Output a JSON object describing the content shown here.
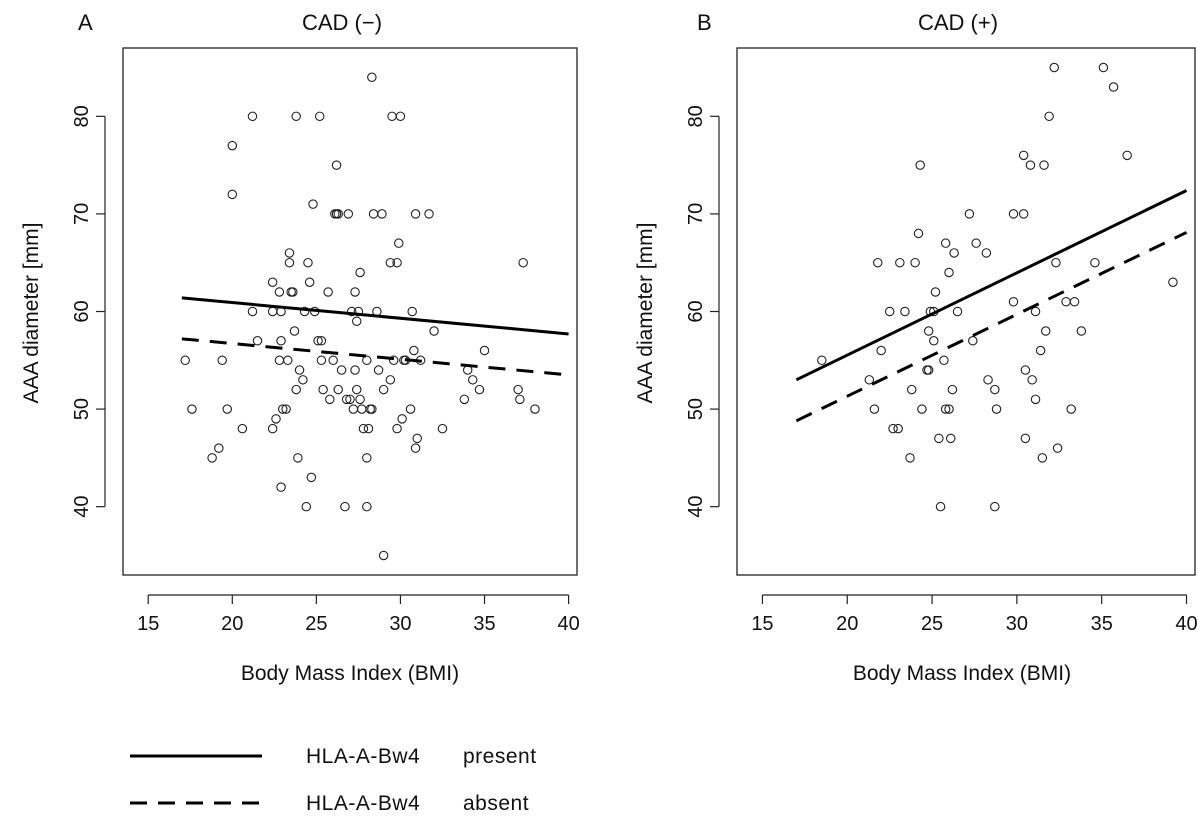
{
  "legend": [
    {
      "line_style": "solid",
      "group": "HLA-A-Bw4",
      "status": "present"
    },
    {
      "line_style": "dashed",
      "group": "HLA-A-Bw4",
      "status": "absent"
    }
  ],
  "chart_data": [
    {
      "type": "scatter",
      "panel_label": "A",
      "title": "CAD (−)",
      "xlabel": "Body Mass Index (BMI)",
      "ylabel": "AAA diameter [mm]",
      "xlim": [
        13.5,
        40.5
      ],
      "ylim": [
        33,
        87
      ],
      "xticks": [
        15,
        20,
        25,
        30,
        35,
        40
      ],
      "yticks": [
        40,
        50,
        60,
        70,
        80
      ],
      "grid": false,
      "points": [
        [
          17.2,
          55
        ],
        [
          17.6,
          50
        ],
        [
          18.8,
          45
        ],
        [
          19.2,
          46
        ],
        [
          19.4,
          55
        ],
        [
          19.7,
          50
        ],
        [
          20.0,
          77
        ],
        [
          20.0,
          72
        ],
        [
          20.6,
          48
        ],
        [
          21.2,
          80
        ],
        [
          21.2,
          60
        ],
        [
          21.5,
          57
        ],
        [
          22.4,
          63
        ],
        [
          22.4,
          60
        ],
        [
          22.4,
          48
        ],
        [
          22.6,
          49
        ],
        [
          22.8,
          62
        ],
        [
          22.8,
          55
        ],
        [
          22.9,
          60
        ],
        [
          22.9,
          57
        ],
        [
          22.9,
          42
        ],
        [
          23.0,
          50
        ],
        [
          23.2,
          50
        ],
        [
          23.3,
          55
        ],
        [
          23.4,
          66
        ],
        [
          23.4,
          65
        ],
        [
          23.5,
          62
        ],
        [
          23.6,
          62
        ],
        [
          23.7,
          58
        ],
        [
          23.8,
          80
        ],
        [
          23.8,
          52
        ],
        [
          23.9,
          45
        ],
        [
          24.0,
          54
        ],
        [
          24.2,
          53
        ],
        [
          24.3,
          60
        ],
        [
          24.4,
          40
        ],
        [
          24.5,
          65
        ],
        [
          24.6,
          63
        ],
        [
          24.7,
          43
        ],
        [
          24.8,
          71
        ],
        [
          24.9,
          60
        ],
        [
          25.1,
          57
        ],
        [
          25.2,
          80
        ],
        [
          25.3,
          57
        ],
        [
          25.3,
          55
        ],
        [
          25.4,
          52
        ],
        [
          25.7,
          62
        ],
        [
          25.8,
          51
        ],
        [
          26.0,
          55
        ],
        [
          26.1,
          70
        ],
        [
          26.2,
          75
        ],
        [
          26.2,
          70
        ],
        [
          26.3,
          70
        ],
        [
          26.3,
          52
        ],
        [
          26.5,
          54
        ],
        [
          26.7,
          40
        ],
        [
          26.8,
          51
        ],
        [
          26.9,
          70
        ],
        [
          27.0,
          51
        ],
        [
          27.1,
          60
        ],
        [
          27.2,
          50
        ],
        [
          27.3,
          62
        ],
        [
          27.3,
          54
        ],
        [
          27.4,
          59
        ],
        [
          27.4,
          52
        ],
        [
          27.5,
          60
        ],
        [
          27.6,
          64
        ],
        [
          27.6,
          51
        ],
        [
          27.7,
          50
        ],
        [
          27.8,
          48
        ],
        [
          28.0,
          45
        ],
        [
          28.0,
          40
        ],
        [
          28.0,
          55
        ],
        [
          28.1,
          48
        ],
        [
          28.2,
          50
        ],
        [
          28.3,
          50
        ],
        [
          28.3,
          84
        ],
        [
          28.4,
          70
        ],
        [
          28.6,
          60
        ],
        [
          28.7,
          54
        ],
        [
          28.9,
          70
        ],
        [
          29.0,
          35
        ],
        [
          29.0,
          52
        ],
        [
          29.4,
          53
        ],
        [
          29.4,
          65
        ],
        [
          29.5,
          80
        ],
        [
          29.6,
          55
        ],
        [
          29.8,
          48
        ],
        [
          29.8,
          65
        ],
        [
          29.9,
          67
        ],
        [
          30.0,
          80
        ],
        [
          30.1,
          49
        ],
        [
          30.2,
          55
        ],
        [
          30.3,
          55
        ],
        [
          30.6,
          50
        ],
        [
          30.7,
          60
        ],
        [
          30.8,
          56
        ],
        [
          30.9,
          46
        ],
        [
          30.9,
          70
        ],
        [
          31.0,
          47
        ],
        [
          31.2,
          55
        ],
        [
          31.7,
          70
        ],
        [
          32.0,
          58
        ],
        [
          32.5,
          48
        ],
        [
          33.8,
          51
        ],
        [
          34.0,
          54
        ],
        [
          34.3,
          53
        ],
        [
          34.7,
          52
        ],
        [
          35.0,
          56
        ],
        [
          37.0,
          52
        ],
        [
          37.1,
          51
        ],
        [
          37.3,
          65
        ],
        [
          38.0,
          50
        ]
      ],
      "regression_lines": [
        {
          "style": "solid",
          "x": [
            17,
            40
          ],
          "y": [
            61.4,
            57.7
          ]
        },
        {
          "style": "dashed",
          "x": [
            17,
            40
          ],
          "y": [
            57.2,
            53.5
          ]
        }
      ]
    },
    {
      "type": "scatter",
      "panel_label": "B",
      "title": "CAD (+)",
      "xlabel": "Body Mass Index (BMI)",
      "ylabel": "AAA diameter [mm]",
      "xlim": [
        13.5,
        40.5
      ],
      "ylim": [
        33,
        87
      ],
      "xticks": [
        15,
        20,
        25,
        30,
        35,
        40
      ],
      "yticks": [
        40,
        50,
        60,
        70,
        80
      ],
      "grid": false,
      "points": [
        [
          18.5,
          55
        ],
        [
          21.3,
          53
        ],
        [
          21.6,
          50
        ],
        [
          21.8,
          65
        ],
        [
          22.0,
          56
        ],
        [
          22.5,
          60
        ],
        [
          22.7,
          48
        ],
        [
          23.0,
          48
        ],
        [
          23.1,
          65
        ],
        [
          23.4,
          60
        ],
        [
          23.7,
          45
        ],
        [
          23.8,
          52
        ],
        [
          24.0,
          65
        ],
        [
          24.2,
          68
        ],
        [
          24.3,
          75
        ],
        [
          24.4,
          50
        ],
        [
          24.7,
          54
        ],
        [
          24.8,
          58
        ],
        [
          24.8,
          54
        ],
        [
          24.9,
          60
        ],
        [
          25.1,
          60
        ],
        [
          25.1,
          57
        ],
        [
          25.2,
          62
        ],
        [
          25.4,
          47
        ],
        [
          25.5,
          40
        ],
        [
          25.7,
          55
        ],
        [
          25.8,
          67
        ],
        [
          25.8,
          50
        ],
        [
          26.0,
          50
        ],
        [
          26.0,
          64
        ],
        [
          26.1,
          47
        ],
        [
          26.2,
          52
        ],
        [
          26.3,
          66
        ],
        [
          26.5,
          60
        ],
        [
          27.2,
          70
        ],
        [
          27.4,
          57
        ],
        [
          27.6,
          67
        ],
        [
          28.2,
          66
        ],
        [
          28.3,
          53
        ],
        [
          28.7,
          52
        ],
        [
          28.7,
          40
        ],
        [
          28.8,
          50
        ],
        [
          29.8,
          61
        ],
        [
          29.8,
          70
        ],
        [
          30.4,
          70
        ],
        [
          30.4,
          76
        ],
        [
          30.5,
          54
        ],
        [
          30.5,
          47
        ],
        [
          30.8,
          75
        ],
        [
          30.9,
          53
        ],
        [
          31.1,
          51
        ],
        [
          31.1,
          60
        ],
        [
          31.4,
          56
        ],
        [
          31.5,
          45
        ],
        [
          31.6,
          75
        ],
        [
          31.7,
          58
        ],
        [
          31.9,
          80
        ],
        [
          32.2,
          85
        ],
        [
          32.3,
          65
        ],
        [
          32.4,
          46
        ],
        [
          32.9,
          61
        ],
        [
          33.2,
          50
        ],
        [
          33.4,
          61
        ],
        [
          33.8,
          58
        ],
        [
          34.6,
          65
        ],
        [
          35.1,
          85
        ],
        [
          35.7,
          83
        ],
        [
          36.5,
          76
        ],
        [
          39.2,
          63
        ]
      ],
      "regression_lines": [
        {
          "style": "solid",
          "x": [
            17,
            40
          ],
          "y": [
            53.0,
            72.4
          ]
        },
        {
          "style": "dashed",
          "x": [
            17,
            40
          ],
          "y": [
            48.8,
            68.1
          ]
        }
      ]
    }
  ]
}
